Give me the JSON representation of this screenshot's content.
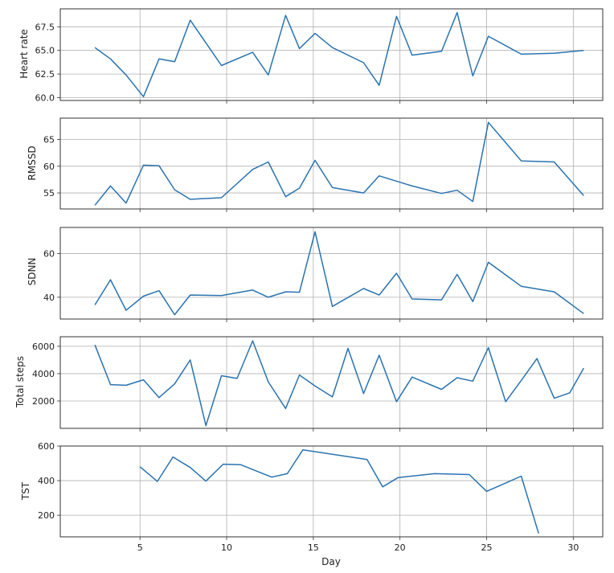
{
  "chart_data": [
    {
      "type": "line",
      "ylabel": "Heart rate",
      "ylim": [
        59.7,
        69.4
      ],
      "yticks": [
        60.0,
        62.5,
        65.0,
        67.5
      ],
      "ytick_labels": [
        "60.0",
        "62.5",
        "65.0",
        "67.5"
      ],
      "x": [
        2.4,
        3.3,
        4.2,
        5.2,
        6.1,
        7.0,
        7.9,
        9.7,
        11.5,
        12.4,
        13.4,
        14.2,
        15.1,
        16.1,
        17.9,
        18.8,
        19.8,
        20.7,
        22.4,
        23.3,
        24.2,
        25.1,
        27.0,
        28.9,
        30.6
      ],
      "values": [
        65.3,
        64.1,
        62.4,
        60.1,
        64.1,
        63.8,
        68.2,
        63.4,
        64.8,
        62.4,
        68.7,
        65.2,
        66.8,
        65.3,
        63.7,
        61.3,
        68.6,
        64.5,
        64.9,
        69.0,
        62.3,
        66.5,
        64.6,
        64.7,
        65.0
      ]
    },
    {
      "type": "line",
      "ylabel": "RMSSD",
      "ylim": [
        52.0,
        69.0
      ],
      "yticks": [
        55,
        60,
        65
      ],
      "ytick_labels": [
        "55",
        "60",
        "65"
      ],
      "x": [
        2.4,
        3.3,
        4.2,
        5.2,
        6.1,
        7.0,
        7.9,
        9.7,
        11.5,
        12.4,
        13.4,
        14.2,
        15.1,
        16.1,
        17.9,
        18.8,
        20.7,
        22.4,
        23.3,
        24.2,
        25.1,
        27.0,
        28.9,
        30.6
      ],
      "values": [
        52.7,
        56.3,
        53.1,
        60.2,
        60.1,
        55.6,
        53.8,
        54.1,
        59.4,
        60.8,
        54.3,
        55.9,
        61.1,
        56.0,
        55.0,
        58.2,
        56.3,
        54.9,
        55.5,
        53.4,
        68.2,
        61.0,
        60.8,
        54.5
      ]
    },
    {
      "type": "line",
      "ylabel": "SDNN",
      "ylim": [
        30,
        72
      ],
      "yticks": [
        40,
        60
      ],
      "ytick_labels": [
        "40",
        "60"
      ],
      "x": [
        2.4,
        3.3,
        4.2,
        5.2,
        6.1,
        7.0,
        7.9,
        9.7,
        11.5,
        12.4,
        13.4,
        14.2,
        15.1,
        16.1,
        17.9,
        18.8,
        19.8,
        20.7,
        22.4,
        23.3,
        24.2,
        25.1,
        27.0,
        28.9,
        30.6
      ],
      "values": [
        36.5,
        48.0,
        34.0,
        40.5,
        43.0,
        32.0,
        41.0,
        40.8,
        43.3,
        40.0,
        42.5,
        42.3,
        70.0,
        35.8,
        44.0,
        41.0,
        51.0,
        39.2,
        38.8,
        50.5,
        38.0,
        56.0,
        45.0,
        42.5,
        32.5
      ]
    },
    {
      "type": "line",
      "ylabel": "Total steps",
      "ylim": [
        0,
        6700
      ],
      "yticks": [
        2000,
        4000,
        6000
      ],
      "ytick_labels": [
        "2000",
        "4000",
        "6000"
      ],
      "x": [
        2.4,
        3.3,
        4.2,
        5.2,
        6.1,
        7.0,
        7.9,
        8.8,
        9.7,
        10.6,
        11.5,
        12.4,
        13.4,
        14.2,
        15.1,
        16.1,
        17.0,
        17.9,
        18.8,
        19.8,
        20.7,
        22.4,
        23.3,
        24.2,
        25.1,
        26.1,
        27.0,
        27.9,
        28.9,
        29.8,
        30.6
      ],
      "values": [
        6100,
        3200,
        3150,
        3550,
        2250,
        3250,
        5000,
        200,
        3850,
        3650,
        6400,
        3400,
        1450,
        3900,
        3100,
        2300,
        5850,
        2550,
        5350,
        1950,
        3750,
        2850,
        3700,
        3450,
        5900,
        1950,
        3500,
        5100,
        2200,
        2600,
        4400
      ]
    },
    {
      "type": "line",
      "ylabel": "TST",
      "xlabel": "Day",
      "ylim": [
        75,
        600
      ],
      "yticks": [
        200,
        400,
        600
      ],
      "ytick_labels": [
        "200",
        "400",
        "600"
      ],
      "x": [
        5.0,
        6.0,
        6.9,
        7.9,
        8.8,
        9.8,
        10.8,
        12.6,
        13.5,
        14.4,
        18.1,
        19.0,
        19.9,
        22.0,
        24.0,
        25.0,
        27.0,
        28.0
      ],
      "values": [
        480,
        395,
        537,
        476,
        397,
        495,
        492,
        420,
        440,
        578,
        522,
        364,
        418,
        440,
        435,
        338,
        426,
        95
      ]
    }
  ],
  "x_axis": {
    "xlim": [
      0.4,
      31.7
    ],
    "xticks": [
      5,
      10,
      15,
      20,
      25,
      30
    ],
    "xtick_labels": [
      "5",
      "10",
      "15",
      "20",
      "25",
      "30"
    ]
  },
  "colors": {
    "line": "#2a73b0",
    "grid": "#b0b0b0",
    "frame": "#333333"
  }
}
